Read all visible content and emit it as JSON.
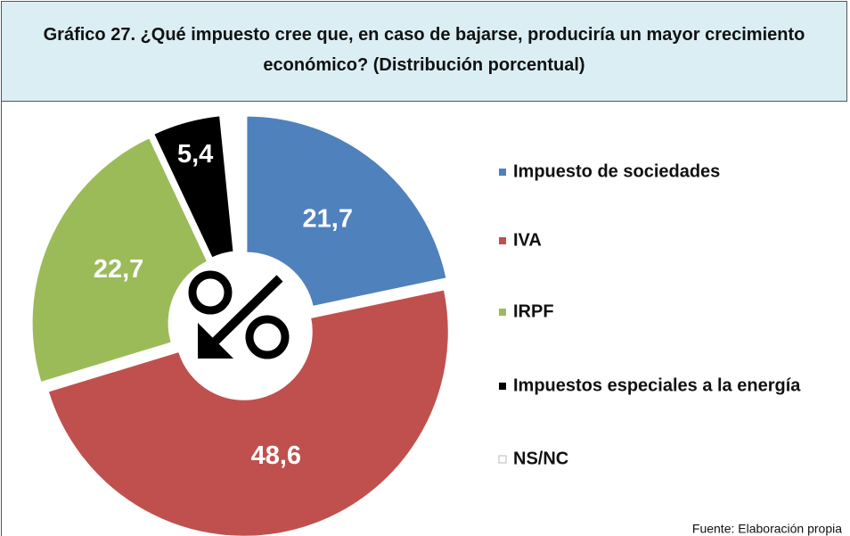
{
  "chart_data": {
    "type": "donut",
    "title": "Gráfico 27. ¿Qué impuesto cree que, en caso de bajarse, produciría un mayor crecimiento económico? (Distribución porcentual)",
    "categories": [
      "Impuesto de sociedades",
      "IVA",
      "IRPF",
      "Impuestos especiales a la energía",
      "NS/NC"
    ],
    "values": [
      21.7,
      48.6,
      22.7,
      5.4,
      1.6
    ],
    "value_labels": [
      "21,7",
      "48,6",
      "22,7",
      "5,4",
      null
    ],
    "colors": [
      "#4f81bd",
      "#c0504d",
      "#9bbb59",
      "#000000",
      "#ffffff"
    ],
    "legend": "right",
    "source": "Fuente: Elaboración propia"
  }
}
